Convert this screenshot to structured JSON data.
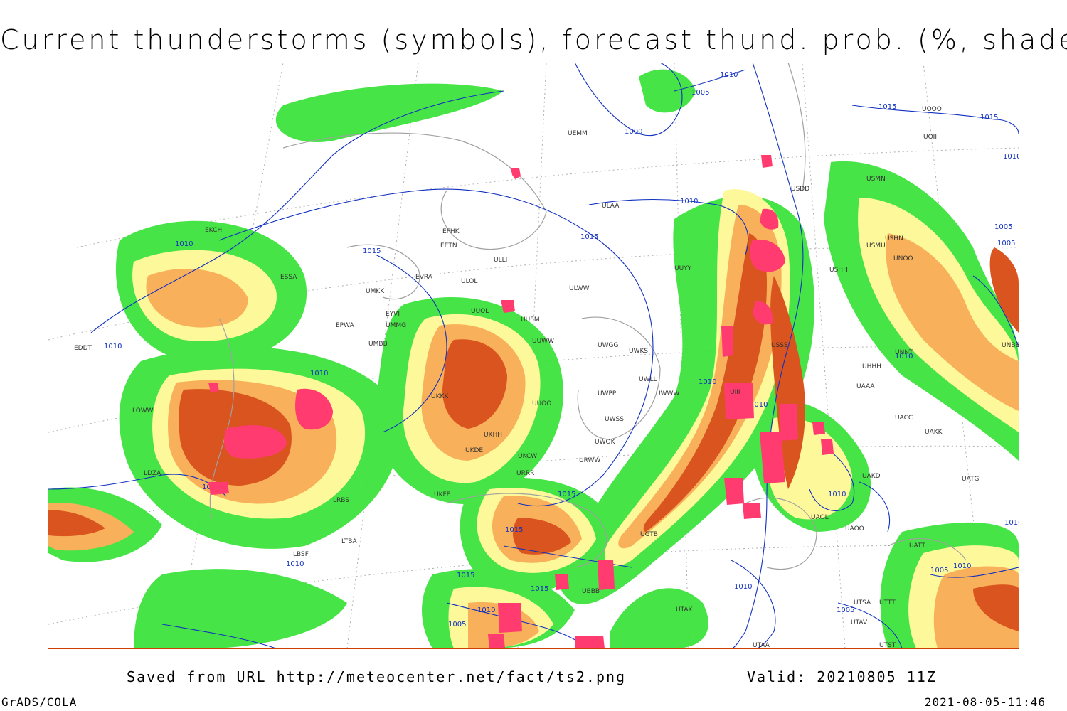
{
  "title": "Current thunderstorms (symbols), forecast thund. prob. (%, shaded)",
  "footer": {
    "saved_prefix": "Saved from URL",
    "url": "http://meteocenter.net/fact/ts2.png",
    "valid_prefix": "Valid:",
    "valid_time": "20210805 11Z",
    "credit": "GrADS/COLA",
    "timestamp": "2021-08-05-11:46"
  },
  "colors": {
    "prob_low": "#3de33d",
    "prob_mid": "#fdf89a",
    "prob_high": "#f8b05a",
    "prob_very_high": "#d9541e",
    "storm_symbol": "#ff3b6f",
    "isobar": "#1030c0",
    "coastline": "#a0a0a0",
    "frame": "#d04000"
  },
  "isobars": [
    "1000",
    "1005",
    "1010",
    "1015"
  ],
  "isobar_labels": [
    "1010",
    "1010",
    "1015",
    "1010",
    "1015",
    "1010",
    "1000",
    "1005",
    "1010",
    "1015",
    "1015",
    "1010",
    "1010",
    "1005",
    "1005",
    "1010",
    "1010",
    "1010",
    "1015",
    "1015",
    "1015",
    "1010",
    "1010",
    "1005",
    "1015",
    "1010",
    "1005",
    "1010",
    "1010",
    "1010",
    "1005"
  ],
  "stations": [
    "UEMM",
    "ULAA",
    "EFHK",
    "EETN",
    "ULLI",
    "EVRA",
    "ULOL",
    "UMKK",
    "EPWA",
    "UMMG",
    "UMBB",
    "UUEM",
    "UUWW",
    "ULWW",
    "UWGG",
    "UWKS",
    "UWLL",
    "UWWW",
    "UWPP",
    "UUOO",
    "UKKK",
    "UKHH",
    "UKDE",
    "UKCW",
    "URWW",
    "UWSS",
    "UWOK",
    "URRR",
    "UKFF",
    "UGTB",
    "UBBB",
    "UTAK",
    "UTAA",
    "UTSA",
    "UTAV",
    "UTTT",
    "UTST",
    "UAAA",
    "UACC",
    "UAKK",
    "UAKD",
    "UAOO",
    "UAOL",
    "UATT",
    "UATG",
    "UNNT",
    "UNOO",
    "UNBB",
    "USSS",
    "USDD",
    "USMN",
    "USMU",
    "USHH",
    "USHN",
    "UOOO",
    "UOII",
    "UIII",
    "UHHH",
    "LBSF",
    "LRBS",
    "LTBA",
    "LDZA",
    "LOWW",
    "EDDT",
    "EKCH",
    "ESSA",
    "EYVI",
    "UUYY",
    "UUOL"
  ]
}
